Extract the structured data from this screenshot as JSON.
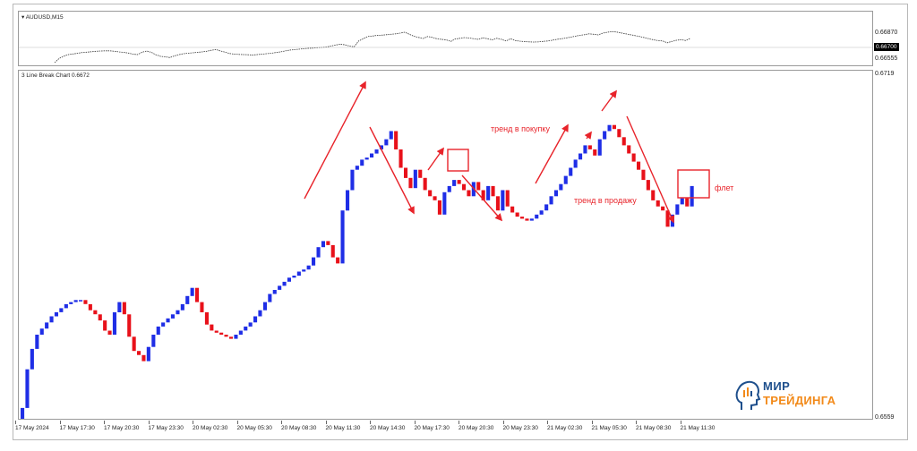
{
  "top_chart": {
    "label": "AUDUSD,M15",
    "prices": [
      "0.66870",
      "0.66700",
      "0.66555"
    ],
    "current_price": "0.66700"
  },
  "main_chart": {
    "label": "3 Line Break Chart 0.6672",
    "price_top": "0.6719",
    "price_bottom": "0.6559"
  },
  "x_ticks": [
    "17 May 2024",
    "17 May 17:30",
    "17 May 20:30",
    "17 May 23:30",
    "20 May 02:30",
    "20 May 05:30",
    "20 May 08:30",
    "20 May 11:30",
    "20 May 14:30",
    "20 May 17:30",
    "20 May 20:30",
    "20 May 23:30",
    "21 May 02:30",
    "21 May 05:30",
    "21 May 08:30",
    "21 May 11:30"
  ],
  "annotations": {
    "uptrend": "тренд в покупку",
    "downtrend": "тренд в продажу",
    "flat": "флет"
  },
  "logo": {
    "line1": "МИР",
    "line2": "ТРЕЙДИНГА",
    "icon": "head-candles-icon"
  },
  "colors": {
    "up": "#1f2ee6",
    "down": "#e8111a",
    "annotation": "#e8232a"
  },
  "chart_data": {
    "type": "bar",
    "title": "3 Line Break Chart 0.6672",
    "ylim": [
      0.6559,
      0.6719
    ],
    "legend": "none",
    "grid": false,
    "x_tick_labels": [
      "17 May 2024",
      "17 May 17:30",
      "17 May 20:30",
      "17 May 23:30",
      "20 May 02:30",
      "20 May 05:30",
      "20 May 08:30",
      "20 May 11:30",
      "20 May 14:30",
      "20 May 17:30",
      "20 May 20:30",
      "20 May 23:30",
      "21 May 02:30",
      "21 May 05:30",
      "21 May 08:30",
      "21 May 11:30"
    ],
    "closes": [
      0.6563,
      0.6582,
      0.6592,
      0.6599,
      0.6602,
      0.6605,
      0.6608,
      0.661,
      0.6612,
      0.6614,
      0.6615,
      0.6616,
      0.6616,
      0.6614,
      0.6611,
      0.6609,
      0.6606,
      0.6601,
      0.6599,
      0.661,
      0.6615,
      0.6609,
      0.6598,
      0.6591,
      0.6589,
      0.6586,
      0.6593,
      0.6599,
      0.6603,
      0.6605,
      0.6607,
      0.6609,
      0.6611,
      0.6614,
      0.6618,
      0.6622,
      0.6615,
      0.661,
      0.6604,
      0.6601,
      0.66,
      0.6599,
      0.6598,
      0.6597,
      0.6599,
      0.6601,
      0.6603,
      0.6605,
      0.6608,
      0.6611,
      0.6615,
      0.6619,
      0.6621,
      0.6623,
      0.6625,
      0.6627,
      0.6628,
      0.663,
      0.6631,
      0.6633,
      0.6637,
      0.6642,
      0.6645,
      0.6643,
      0.6637,
      0.6634,
      0.666,
      0.667,
      0.668,
      0.6682,
      0.6685,
      0.6686,
      0.6688,
      0.669,
      0.6692,
      0.6695,
      0.6699,
      0.669,
      0.6681,
      0.6676,
      0.6671,
      0.668,
      0.6676,
      0.667,
      0.6667,
      0.6665,
      0.6658,
      0.6669,
      0.6672,
      0.6675,
      0.6673,
      0.667,
      0.6667,
      0.6674,
      0.667,
      0.6665,
      0.6672,
      0.6667,
      0.666,
      0.667,
      0.6662,
      0.6659,
      0.6657,
      0.6656,
      0.6655,
      0.6656,
      0.6658,
      0.666,
      0.6663,
      0.6667,
      0.667,
      0.6673,
      0.6677,
      0.6681,
      0.6685,
      0.6688,
      0.6692,
      0.669,
      0.6687,
      0.6695,
      0.6699,
      0.6702,
      0.67,
      0.6696,
      0.6692,
      0.6688,
      0.6684,
      0.668,
      0.6675,
      0.667,
      0.6665,
      0.6662,
      0.666,
      0.6652,
      0.6658,
      0.6663,
      0.6666,
      0.6662,
      0.6672
    ]
  }
}
